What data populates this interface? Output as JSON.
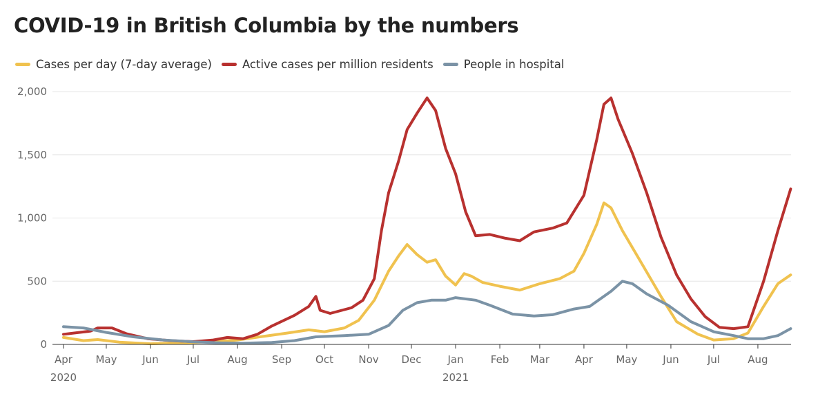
{
  "title": "COVID-19 in British Columbia by the numbers",
  "chart_data": {
    "type": "line",
    "title": "COVID-19 in British Columbia by the numbers",
    "xlabel": "",
    "ylabel": "",
    "ylim": [
      0,
      2000
    ],
    "xlim": [
      "2020-04-01",
      "2021-08-24"
    ],
    "yticks": [
      0,
      500,
      1000,
      1500,
      2000
    ],
    "ytick_labels": [
      "0",
      "500",
      "1,000",
      "1,500",
      "2,000"
    ],
    "xticks": [
      {
        "date": "2020-04-01",
        "label": "Apr",
        "year": "2020"
      },
      {
        "date": "2020-05-01",
        "label": "May",
        "year": ""
      },
      {
        "date": "2020-06-01",
        "label": "Jun",
        "year": ""
      },
      {
        "date": "2020-07-01",
        "label": "Jul",
        "year": ""
      },
      {
        "date": "2020-08-01",
        "label": "Aug",
        "year": ""
      },
      {
        "date": "2020-09-01",
        "label": "Sep",
        "year": ""
      },
      {
        "date": "2020-10-01",
        "label": "Oct",
        "year": ""
      },
      {
        "date": "2020-11-01",
        "label": "Nov",
        "year": ""
      },
      {
        "date": "2020-12-01",
        "label": "Dec",
        "year": ""
      },
      {
        "date": "2021-01-01",
        "label": "Jan",
        "year": "2021"
      },
      {
        "date": "2021-02-01",
        "label": "Feb",
        "year": ""
      },
      {
        "date": "2021-03-01",
        "label": "Mar",
        "year": ""
      },
      {
        "date": "2021-04-01",
        "label": "Apr",
        "year": ""
      },
      {
        "date": "2021-05-01",
        "label": "May",
        "year": ""
      },
      {
        "date": "2021-06-01",
        "label": "Jun",
        "year": ""
      },
      {
        "date": "2021-07-01",
        "label": "Jul",
        "year": ""
      },
      {
        "date": "2021-08-01",
        "label": "Aug",
        "year": ""
      }
    ],
    "grid": true,
    "legend_position": "top-left",
    "series": [
      {
        "name": "Cases per day (7-day average)",
        "color": "#f0c24f",
        "points": [
          [
            "2020-04-01",
            55
          ],
          [
            "2020-04-15",
            30
          ],
          [
            "2020-04-25",
            38
          ],
          [
            "2020-05-10",
            18
          ],
          [
            "2020-06-01",
            5
          ],
          [
            "2020-07-01",
            15
          ],
          [
            "2020-07-20",
            25
          ],
          [
            "2020-08-01",
            35
          ],
          [
            "2020-08-20",
            65
          ],
          [
            "2020-09-05",
            90
          ],
          [
            "2020-09-20",
            115
          ],
          [
            "2020-10-01",
            100
          ],
          [
            "2020-10-15",
            130
          ],
          [
            "2020-10-25",
            190
          ],
          [
            "2020-11-05",
            350
          ],
          [
            "2020-11-15",
            580
          ],
          [
            "2020-11-22",
            700
          ],
          [
            "2020-11-28",
            790
          ],
          [
            "2020-12-05",
            710
          ],
          [
            "2020-12-12",
            650
          ],
          [
            "2020-12-18",
            670
          ],
          [
            "2020-12-25",
            540
          ],
          [
            "2021-01-01",
            470
          ],
          [
            "2021-01-07",
            560
          ],
          [
            "2021-01-12",
            540
          ],
          [
            "2021-01-20",
            490
          ],
          [
            "2021-02-01",
            460
          ],
          [
            "2021-02-15",
            430
          ],
          [
            "2021-03-01",
            480
          ],
          [
            "2021-03-15",
            520
          ],
          [
            "2021-03-25",
            580
          ],
          [
            "2021-04-01",
            720
          ],
          [
            "2021-04-10",
            950
          ],
          [
            "2021-04-15",
            1120
          ],
          [
            "2021-04-20",
            1080
          ],
          [
            "2021-04-28",
            900
          ],
          [
            "2021-05-10",
            670
          ],
          [
            "2021-05-25",
            380
          ],
          [
            "2021-06-05",
            180
          ],
          [
            "2021-06-20",
            80
          ],
          [
            "2021-07-01",
            35
          ],
          [
            "2021-07-15",
            45
          ],
          [
            "2021-07-25",
            90
          ],
          [
            "2021-08-05",
            300
          ],
          [
            "2021-08-15",
            480
          ],
          [
            "2021-08-24",
            550
          ]
        ]
      },
      {
        "name": "Active cases per million residents",
        "color": "#b8312f",
        "points": [
          [
            "2020-04-01",
            80
          ],
          [
            "2020-04-20",
            105
          ],
          [
            "2020-04-25",
            130
          ],
          [
            "2020-05-05",
            130
          ],
          [
            "2020-05-15",
            85
          ],
          [
            "2020-05-30",
            45
          ],
          [
            "2020-06-15",
            30
          ],
          [
            "2020-07-01",
            22
          ],
          [
            "2020-07-15",
            35
          ],
          [
            "2020-07-25",
            55
          ],
          [
            "2020-08-05",
            45
          ],
          [
            "2020-08-15",
            80
          ],
          [
            "2020-08-25",
            145
          ],
          [
            "2020-09-10",
            230
          ],
          [
            "2020-09-20",
            300
          ],
          [
            "2020-09-25",
            380
          ],
          [
            "2020-09-28",
            270
          ],
          [
            "2020-10-05",
            245
          ],
          [
            "2020-10-20",
            290
          ],
          [
            "2020-10-28",
            350
          ],
          [
            "2020-11-05",
            520
          ],
          [
            "2020-11-10",
            900
          ],
          [
            "2020-11-15",
            1200
          ],
          [
            "2020-11-22",
            1450
          ],
          [
            "2020-11-28",
            1700
          ],
          [
            "2020-12-05",
            1830
          ],
          [
            "2020-12-12",
            1950
          ],
          [
            "2020-12-18",
            1850
          ],
          [
            "2020-12-25",
            1550
          ],
          [
            "2021-01-01",
            1350
          ],
          [
            "2021-01-08",
            1050
          ],
          [
            "2021-01-15",
            860
          ],
          [
            "2021-01-25",
            870
          ],
          [
            "2021-02-05",
            840
          ],
          [
            "2021-02-15",
            820
          ],
          [
            "2021-02-25",
            890
          ],
          [
            "2021-03-10",
            920
          ],
          [
            "2021-03-20",
            960
          ],
          [
            "2021-04-01",
            1180
          ],
          [
            "2021-04-10",
            1620
          ],
          [
            "2021-04-15",
            1900
          ],
          [
            "2021-04-20",
            1950
          ],
          [
            "2021-04-25",
            1780
          ],
          [
            "2021-05-05",
            1510
          ],
          [
            "2021-05-15",
            1200
          ],
          [
            "2021-05-25",
            850
          ],
          [
            "2021-06-05",
            550
          ],
          [
            "2021-06-15",
            360
          ],
          [
            "2021-06-25",
            220
          ],
          [
            "2021-07-05",
            135
          ],
          [
            "2021-07-15",
            125
          ],
          [
            "2021-07-25",
            140
          ],
          [
            "2021-08-05",
            500
          ],
          [
            "2021-08-15",
            900
          ],
          [
            "2021-08-24",
            1230
          ]
        ]
      },
      {
        "name": "People in hospital",
        "color": "#7b93a6",
        "points": [
          [
            "2020-04-01",
            140
          ],
          [
            "2020-04-15",
            130
          ],
          [
            "2020-05-01",
            95
          ],
          [
            "2020-05-20",
            60
          ],
          [
            "2020-06-10",
            35
          ],
          [
            "2020-07-01",
            20
          ],
          [
            "2020-07-20",
            12
          ],
          [
            "2020-08-05",
            10
          ],
          [
            "2020-08-25",
            15
          ],
          [
            "2020-09-10",
            30
          ],
          [
            "2020-09-25",
            60
          ],
          [
            "2020-10-15",
            70
          ],
          [
            "2020-11-01",
            80
          ],
          [
            "2020-11-15",
            150
          ],
          [
            "2020-11-25",
            270
          ],
          [
            "2020-12-05",
            330
          ],
          [
            "2020-12-15",
            350
          ],
          [
            "2020-12-25",
            350
          ],
          [
            "2021-01-01",
            370
          ],
          [
            "2021-01-15",
            350
          ],
          [
            "2021-01-25",
            310
          ],
          [
            "2021-02-10",
            240
          ],
          [
            "2021-02-25",
            225
          ],
          [
            "2021-03-10",
            235
          ],
          [
            "2021-03-25",
            280
          ],
          [
            "2021-04-05",
            300
          ],
          [
            "2021-04-20",
            420
          ],
          [
            "2021-04-28",
            500
          ],
          [
            "2021-05-05",
            480
          ],
          [
            "2021-05-15",
            400
          ],
          [
            "2021-05-30",
            310
          ],
          [
            "2021-06-15",
            180
          ],
          [
            "2021-07-01",
            100
          ],
          [
            "2021-07-15",
            70
          ],
          [
            "2021-07-25",
            45
          ],
          [
            "2021-08-05",
            45
          ],
          [
            "2021-08-15",
            70
          ],
          [
            "2021-08-24",
            125
          ]
        ]
      }
    ]
  }
}
